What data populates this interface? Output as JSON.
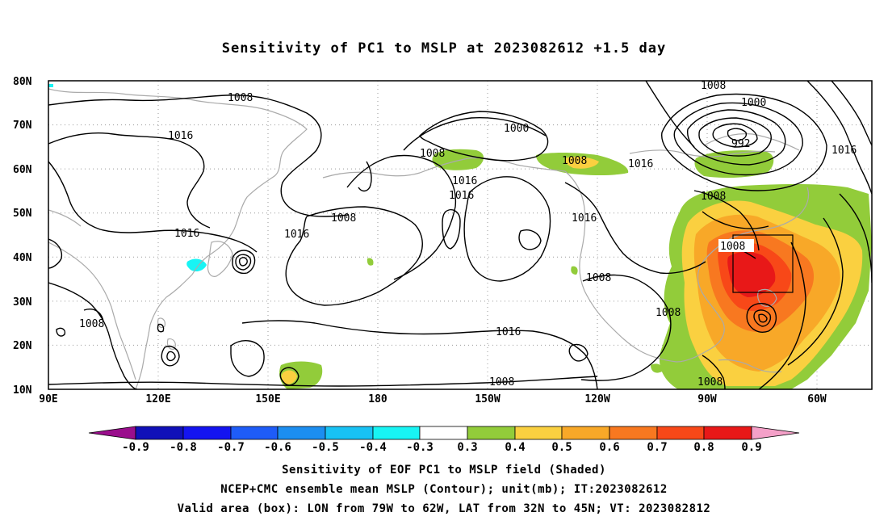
{
  "title": "Sensitivity of PC1 to MSLP at 2023082612 +1.5 day",
  "lat_labels": [
    "80N",
    "70N",
    "60N",
    "50N",
    "40N",
    "30N",
    "20N",
    "10N"
  ],
  "lon_labels": [
    "90E",
    "120E",
    "150E",
    "180",
    "150W",
    "120W",
    "90W",
    "60W"
  ],
  "contour_labels": {
    "c1": "1008",
    "c2": "1016",
    "c3": "1016",
    "c4": "1008",
    "c5": "1000",
    "c6": "1008",
    "c7": "1016",
    "c8": "1016",
    "c9": "1008",
    "c10": "1016",
    "c11": "1008",
    "c12": "1016",
    "c13": "1008",
    "c14": "1000",
    "c15": "992",
    "c16": "1016",
    "c17": "1008",
    "c18": "1016",
    "c19": "1008",
    "c20": "1008",
    "c21": "1016",
    "c22": "1008",
    "c23": "1008",
    "c24": "1008"
  },
  "colorbar": {
    "labels": [
      "-0.9",
      "-0.8",
      "-0.7",
      "-0.6",
      "-0.5",
      "-0.4",
      "-0.3",
      "0.3",
      "0.4",
      "0.5",
      "0.6",
      "0.7",
      "0.8",
      "0.9"
    ],
    "colors": [
      "#9a0e8c",
      "#1010b8",
      "#1414f0",
      "#1e5cf8",
      "#1c8ef0",
      "#18c2f4",
      "#18f4f4",
      "#ffffff",
      "#92cc3a",
      "#fad040",
      "#f8a828",
      "#f87820",
      "#f84818",
      "#e81818",
      "#f4a0c8"
    ]
  },
  "box": {
    "lon_west": -79,
    "lon_east": -62,
    "lat_south": 32,
    "lat_north": 45
  },
  "caption": {
    "line1": "Sensitivity of EOF PC1 to MSLP field (Shaded)",
    "line2": "NCEP+CMC ensemble mean MSLP (Contour); unit(mb); IT:2023082612",
    "line3": "Valid area (box): LON from 79W to 62W, LAT from 32N to 45N; VT: 2023082812"
  }
}
